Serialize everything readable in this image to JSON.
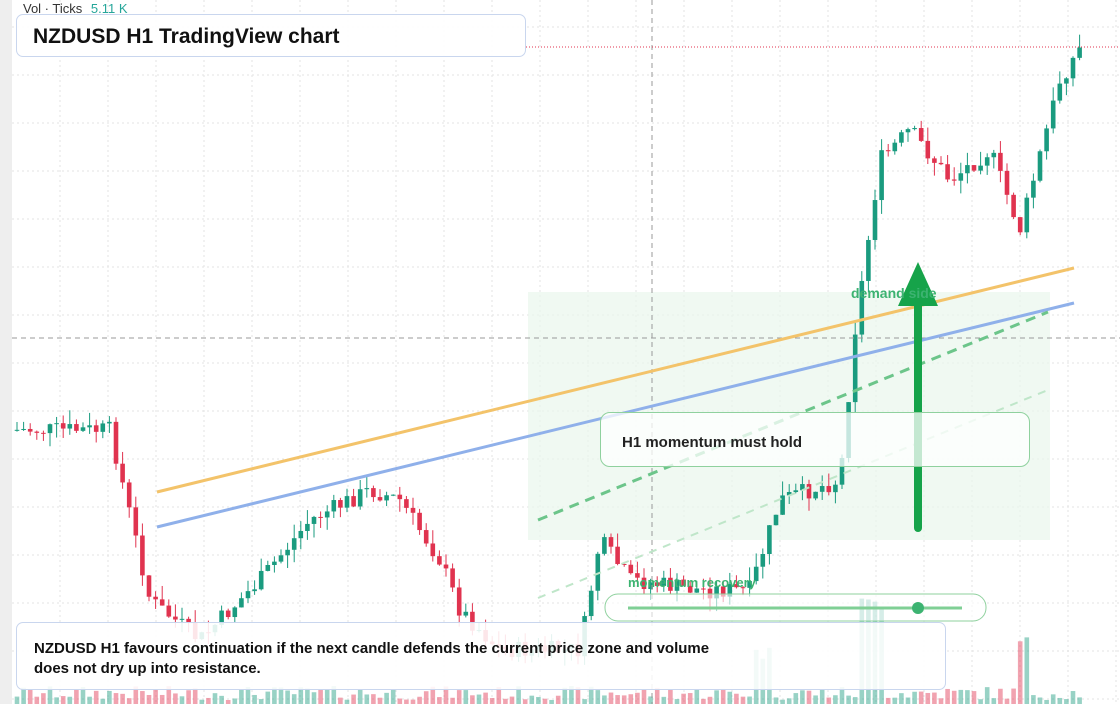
{
  "header": {
    "vol_label": "Vol · Ticks",
    "vol_value": "5.11 K",
    "title": "NZDUSD H1 TradingView chart"
  },
  "annotations": {
    "zone": "demand side",
    "callout": "H1 momentum must hold",
    "pill": "momentum recovery"
  },
  "note": "NZDUSD H1 favours continuation if the next candle defends the current price zone and volume does not dry up into resistance."
}
